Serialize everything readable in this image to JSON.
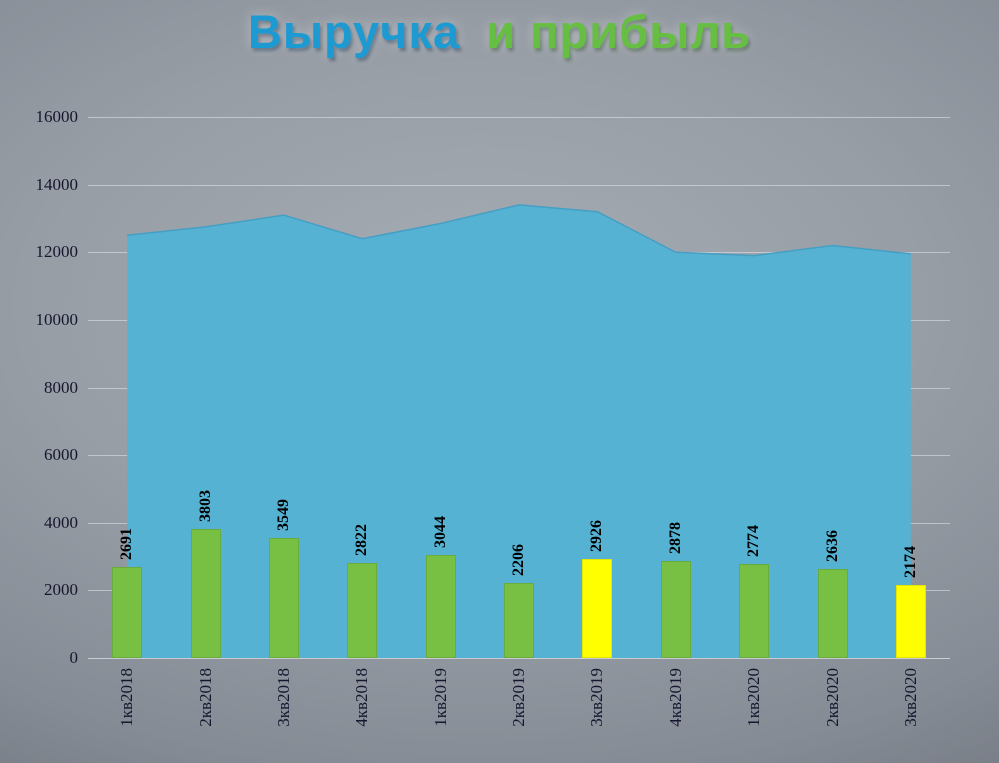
{
  "title": {
    "part1": "Выручка",
    "part2": "и прибыль"
  },
  "colors": {
    "title_revenue": "#1e9ad2",
    "title_profit": "#66bf43",
    "area_fill": "#55b2d3",
    "area_stroke": "#459fc4",
    "bar_fill": "#77c043",
    "bar_highlight": "#ffff00",
    "axis_text": "#16162f",
    "bar_label_text": "#000000"
  },
  "chart_data": {
    "type": "combo",
    "title": "Выручка и прибыль",
    "categories": [
      "1кв2018",
      "2кв2018",
      "3кв2018",
      "4кв2018",
      "1кв2019",
      "2кв2019",
      "3кв2019",
      "4кв2019",
      "1кв2020",
      "2кв2020",
      "3кв2020"
    ],
    "series": [
      {
        "name": "Выручка",
        "type": "area",
        "values": [
          12500,
          12750,
          13100,
          12400,
          12850,
          13400,
          13200,
          12000,
          11900,
          12200,
          11950
        ]
      },
      {
        "name": "Прибыль",
        "type": "bar",
        "values": [
          2691,
          3803,
          3549,
          2822,
          3044,
          2206,
          2926,
          2878,
          2774,
          2636,
          2174
        ],
        "highlighted_indices": [
          6,
          10
        ]
      }
    ],
    "ylim": [
      0,
      16000
    ],
    "yticks": [
      0,
      2000,
      4000,
      6000,
      8000,
      10000,
      12000,
      14000,
      16000
    ],
    "grid": true,
    "legend": "none",
    "bar_labels_rotated": true,
    "x_labels_rotated": true
  }
}
